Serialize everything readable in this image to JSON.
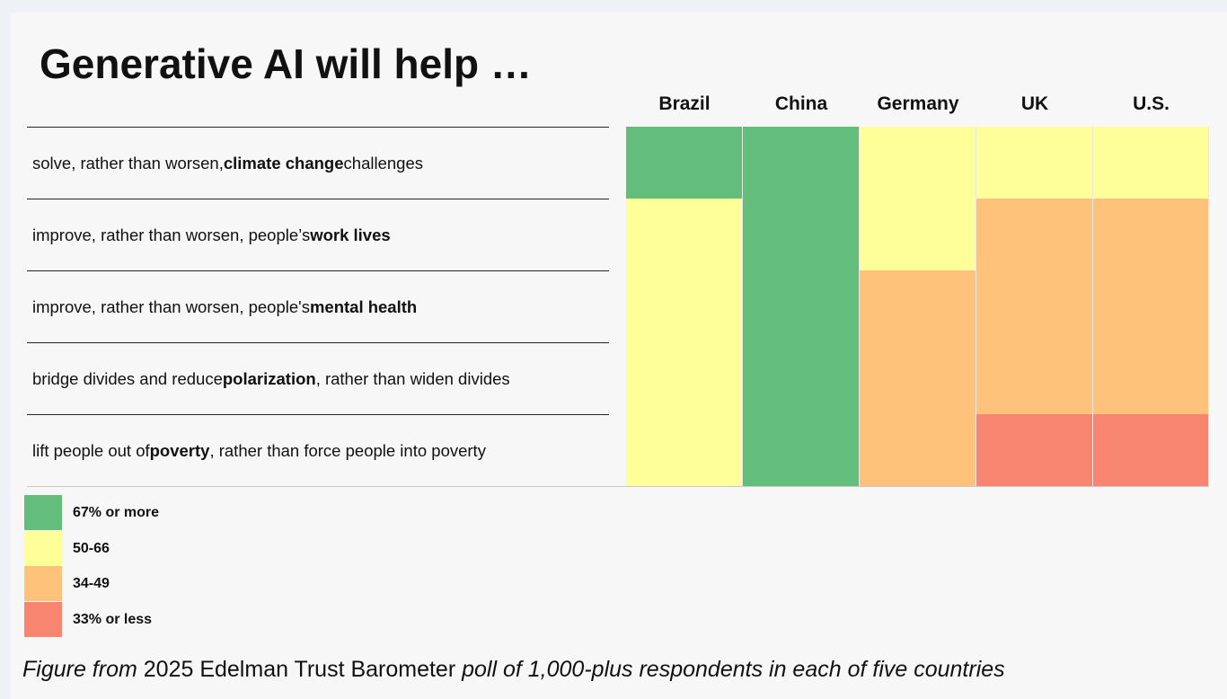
{
  "chart_data": {
    "type": "heatmap",
    "title": "Generative AI will help …",
    "columns": [
      "Brazil",
      "China",
      "Germany",
      "UK",
      "U.S."
    ],
    "rows": [
      {
        "parts": [
          [
            "solve, rather than worsen, ",
            false
          ],
          [
            "climate change",
            true
          ],
          [
            " challenges",
            false
          ]
        ]
      },
      {
        "parts": [
          [
            "improve, rather than worsen, people’s ",
            false
          ],
          [
            "work lives",
            true
          ]
        ]
      },
      {
        "parts": [
          [
            "improve, rather than worsen, people's ",
            false
          ],
          [
            "mental health",
            true
          ]
        ]
      },
      {
        "parts": [
          [
            "bridge divides and reduce ",
            false
          ],
          [
            "polarization",
            true
          ],
          [
            ", rather than widen divides",
            false
          ]
        ]
      },
      {
        "parts": [
          [
            "lift people out of ",
            false
          ],
          [
            "poverty",
            true
          ],
          [
            ", rather than force people into poverty",
            false
          ]
        ]
      }
    ],
    "values": [
      [
        "67% or more",
        "67% or more",
        "50-66",
        "50-66",
        "50-66"
      ],
      [
        "50-66",
        "67% or more",
        "50-66",
        "34-49",
        "34-49"
      ],
      [
        "50-66",
        "67% or more",
        "34-49",
        "34-49",
        "34-49"
      ],
      [
        "50-66",
        "67% or more",
        "34-49",
        "34-49",
        "34-49"
      ],
      [
        "50-66",
        "67% or more",
        "34-49",
        "33% or less",
        "33% or less"
      ]
    ],
    "legend": [
      {
        "label": "67% or more",
        "color": "#63be7b"
      },
      {
        "label": "50-66",
        "color": "#ffff99"
      },
      {
        "label": "34-49",
        "color": "#ffc27a"
      },
      {
        "label": "33% or less",
        "color": "#f88570"
      }
    ]
  },
  "caption": {
    "parts": [
      [
        "Figure from ",
        true
      ],
      [
        "2025 Edelman Trust Barometer",
        false
      ],
      [
        " poll of 1,000-plus respondents in each of five countries",
        true
      ]
    ]
  }
}
